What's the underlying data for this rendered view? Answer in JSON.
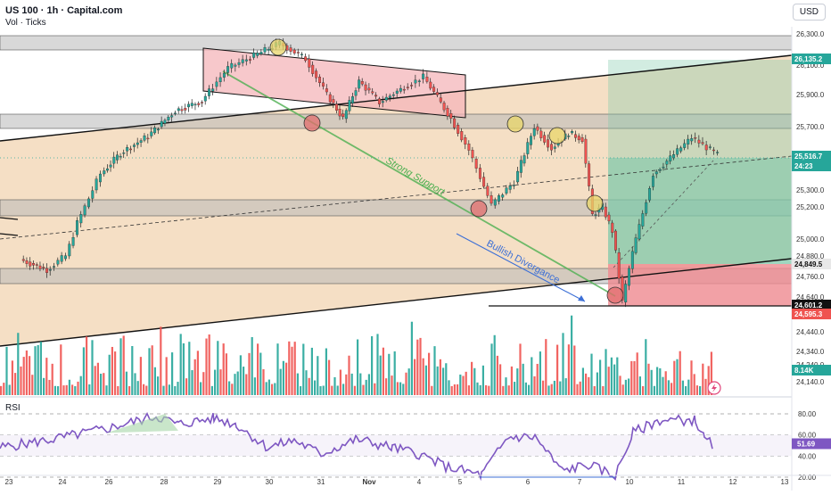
{
  "header": {
    "symbol_line": "US 100 · 1h · Capital.com",
    "sub_line": "Vol · Ticks",
    "currency_button": "USD"
  },
  "rsi": {
    "label": "RSI",
    "ticks": [
      "80.00",
      "60.00",
      "40.00",
      "20.00"
    ],
    "tick_values": [
      80,
      60,
      40,
      20
    ],
    "value_label": "51.69",
    "value": 51.69
  },
  "colors": {
    "up": "#26a69a",
    "down": "#ef5350",
    "zone_fill": "#f2d7b6",
    "band_fill": "#b8b8b8",
    "channel_fill": "#f4b6b9",
    "support_line": "#4caf50",
    "divergence": "#3c6fd6",
    "rsi_line": "#7e57c2",
    "tp_fill": "#7fc8a9",
    "sl_fill": "#ef8a90"
  },
  "chart_data": {
    "type": "line",
    "title": "US 100 · 1h · Capital.com",
    "xlabel": "",
    "ylabel": "",
    "x_ticks": [
      "23",
      "24",
      "26",
      "28",
      "29",
      "30",
      "31",
      "Nov",
      "4",
      "5",
      "6",
      "7",
      "10",
      "11",
      "12",
      "13"
    ],
    "y_ticks": [
      "26,300.0",
      "26,100.0",
      "25,900.0",
      "25,700.0",
      "25,500.0",
      "25,300.0",
      "25,200.0",
      "25,000.0",
      "24,880.0",
      "24,760.0",
      "24,640.0",
      "24,440.0",
      "24,340.0",
      "24,240.0",
      "24,140.0"
    ],
    "ylim": [
      24140,
      26300
    ],
    "price_path": [
      {
        "x": "23",
        "y": 24860
      },
      {
        "x": "23",
        "y": 24800
      },
      {
        "x": "24",
        "y": 24880
      },
      {
        "x": "24",
        "y": 25100
      },
      {
        "x": "24",
        "y": 25250
      },
      {
        "x": "24",
        "y": 25400
      },
      {
        "x": "26",
        "y": 25530
      },
      {
        "x": "26",
        "y": 25640
      },
      {
        "x": "28",
        "y": 25800
      },
      {
        "x": "28",
        "y": 25860
      },
      {
        "x": "29",
        "y": 26080
      },
      {
        "x": "29",
        "y": 26160
      },
      {
        "x": "30",
        "y": 26240
      },
      {
        "x": "30",
        "y": 26140
      },
      {
        "x": "31",
        "y": 25900
      },
      {
        "x": "31",
        "y": 25750
      },
      {
        "x": "31",
        "y": 25990
      },
      {
        "x": "Nov",
        "y": 25850
      },
      {
        "x": "Nov",
        "y": 25950
      },
      {
        "x": "4",
        "y": 26020
      },
      {
        "x": "4",
        "y": 25880
      },
      {
        "x": "4",
        "y": 25750
      },
      {
        "x": "5",
        "y": 25550
      },
      {
        "x": "5",
        "y": 25210
      },
      {
        "x": "5",
        "y": 25350
      },
      {
        "x": "6",
        "y": 25700
      },
      {
        "x": "6",
        "y": 25560
      },
      {
        "x": "6",
        "y": 25660
      },
      {
        "x": "7",
        "y": 25620
      },
      {
        "x": "7",
        "y": 25150
      },
      {
        "x": "7",
        "y": 25200
      },
      {
        "x": "7",
        "y": 25050
      },
      {
        "x": "7",
        "y": 24610
      },
      {
        "x": "10",
        "y": 25000
      },
      {
        "x": "10",
        "y": 25400
      },
      {
        "x": "10",
        "y": 25500
      },
      {
        "x": "11",
        "y": 25630
      },
      {
        "x": "11",
        "y": 25520
      }
    ],
    "volume_axis_label": "8.14K",
    "price_labels": [
      {
        "text": "26,135.2",
        "kind": "target"
      },
      {
        "text": "25,516.7",
        "kind": "last"
      },
      {
        "text": "24:23",
        "kind": "countdown"
      },
      {
        "text": "24,849.5",
        "kind": "level"
      },
      {
        "text": "24,601.2",
        "kind": "level"
      },
      {
        "text": "24,595.3",
        "kind": "stop"
      }
    ],
    "annotations": [
      "Strong Support",
      "Bullish Divergance"
    ]
  }
}
